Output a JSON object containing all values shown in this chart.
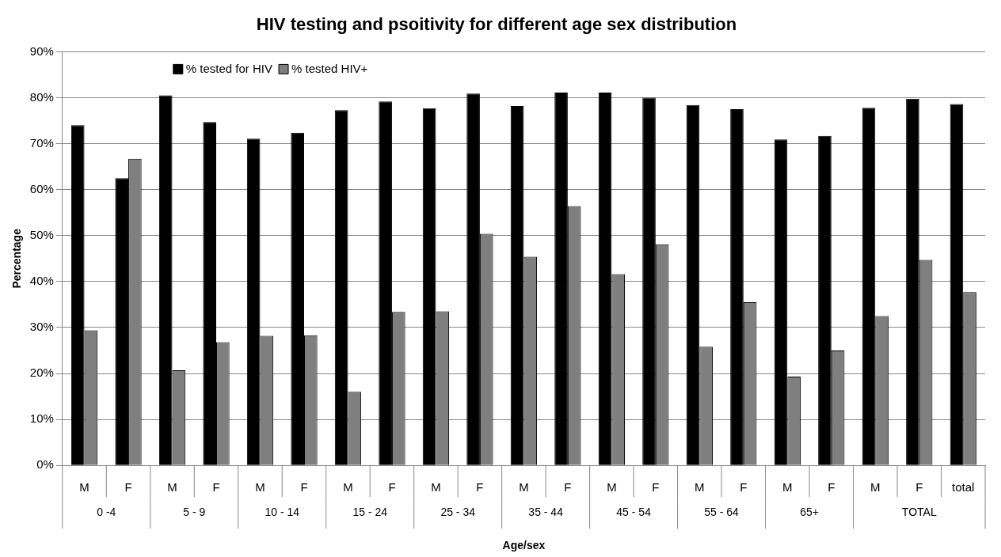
{
  "chart_data": {
    "type": "bar",
    "title": "HIV testing and psoitivity for different age sex distribution",
    "xlabel": "Age/sex",
    "ylabel": "Percentage",
    "categories": [
      "M",
      "F",
      "M",
      "F",
      "M",
      "F",
      "M",
      "F",
      "M",
      "F",
      "M",
      "F",
      "M",
      "F",
      "M",
      "F",
      "M",
      "F",
      "M",
      "F",
      "total"
    ],
    "series": [
      {
        "name": "% tested for HIV",
        "color": "#000000",
        "values": [
          74,
          62.5,
          80.5,
          74.7,
          71.1,
          72.4,
          77.3,
          79.2,
          77.7,
          80.9,
          78.2,
          81.1,
          81.1,
          80,
          78.4,
          77.5,
          70.9,
          71.7,
          77.8,
          79.8,
          78.6
        ]
      },
      {
        "name": "% tested HIV+",
        "color": "#7f7f7f",
        "values": [
          29.4,
          66.7,
          20.7,
          26.8,
          28.2,
          28.3,
          16,
          33.4,
          33.5,
          50.4,
          45.4,
          56.4,
          41.6,
          48.1,
          25.8,
          35.5,
          19.3,
          25,
          32.5,
          44.7,
          37.7
        ]
      }
    ],
    "annotations": [
      "0 -4",
      "5 - 9",
      "10 - 14",
      "15 - 24",
      "25 - 34",
      "35 - 44",
      "45 - 54",
      "55 - 64",
      "65+",
      "TOTAL"
    ],
    "ylim": [
      0,
      90
    ],
    "yticks": [
      {
        "value": 0,
        "label": "0%"
      },
      {
        "value": 10,
        "label": "10%"
      },
      {
        "value": 20,
        "label": "20%"
      },
      {
        "value": 30,
        "label": "30%"
      },
      {
        "value": 40,
        "label": "40%"
      },
      {
        "value": 50,
        "label": "50%"
      },
      {
        "value": 60,
        "label": "60%"
      },
      {
        "value": 70,
        "label": "70%"
      },
      {
        "value": 80,
        "label": "80%"
      },
      {
        "value": 90,
        "label": "90%"
      }
    ],
    "grid": "y",
    "legend": "top left"
  }
}
